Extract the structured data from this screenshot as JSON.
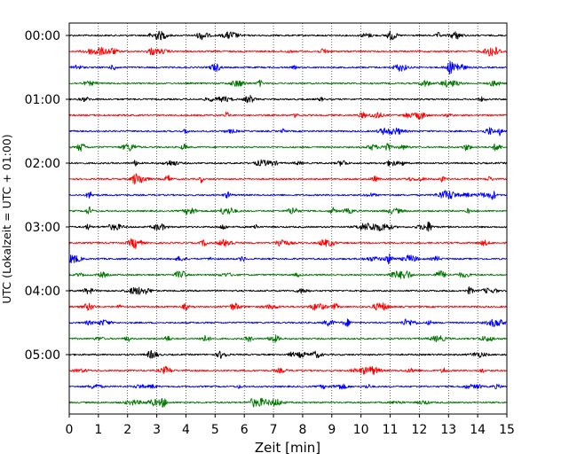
{
  "chart_data": {
    "type": "line",
    "xlabel": "Zeit  [min]",
    "ylabel": "UTC (Lokalzeit = UTC + 01:00)",
    "xlim": [
      0,
      15
    ],
    "x_ticks": [
      "0",
      "1",
      "2",
      "3",
      "4",
      "5",
      "6",
      "7",
      "8",
      "9",
      "10",
      "11",
      "12",
      "13",
      "14",
      "15"
    ],
    "y_tick_labels": [
      "00:00",
      "01:00",
      "02:00",
      "03:00",
      "04:00",
      "05:00"
    ],
    "row_interval_minutes": 15,
    "rows_per_label": 4,
    "series_colors": [
      "#000000",
      "#ff0000",
      "#0000ff",
      "#007700"
    ],
    "grid": {
      "vertical_dotted": true
    },
    "rows": [
      {
        "start": "00:00",
        "color": "#000000"
      },
      {
        "start": "00:15",
        "color": "#ff0000"
      },
      {
        "start": "00:30",
        "color": "#0000ff"
      },
      {
        "start": "00:45",
        "color": "#007700"
      },
      {
        "start": "01:00",
        "color": "#000000"
      },
      {
        "start": "01:15",
        "color": "#ff0000"
      },
      {
        "start": "01:30",
        "color": "#0000ff"
      },
      {
        "start": "01:45",
        "color": "#007700"
      },
      {
        "start": "02:00",
        "color": "#000000"
      },
      {
        "start": "02:15",
        "color": "#ff0000"
      },
      {
        "start": "02:30",
        "color": "#0000ff"
      },
      {
        "start": "02:45",
        "color": "#007700"
      },
      {
        "start": "03:00",
        "color": "#000000"
      },
      {
        "start": "03:15",
        "color": "#ff0000"
      },
      {
        "start": "03:30",
        "color": "#0000ff"
      },
      {
        "start": "03:45",
        "color": "#007700"
      },
      {
        "start": "04:00",
        "color": "#000000"
      },
      {
        "start": "04:15",
        "color": "#ff0000"
      },
      {
        "start": "04:30",
        "color": "#0000ff"
      },
      {
        "start": "04:45",
        "color": "#007700"
      },
      {
        "start": "05:00",
        "color": "#000000"
      },
      {
        "start": "05:15",
        "color": "#ff0000"
      },
      {
        "start": "05:30",
        "color": "#0000ff"
      },
      {
        "start": "05:45",
        "color": "#007700"
      }
    ]
  }
}
